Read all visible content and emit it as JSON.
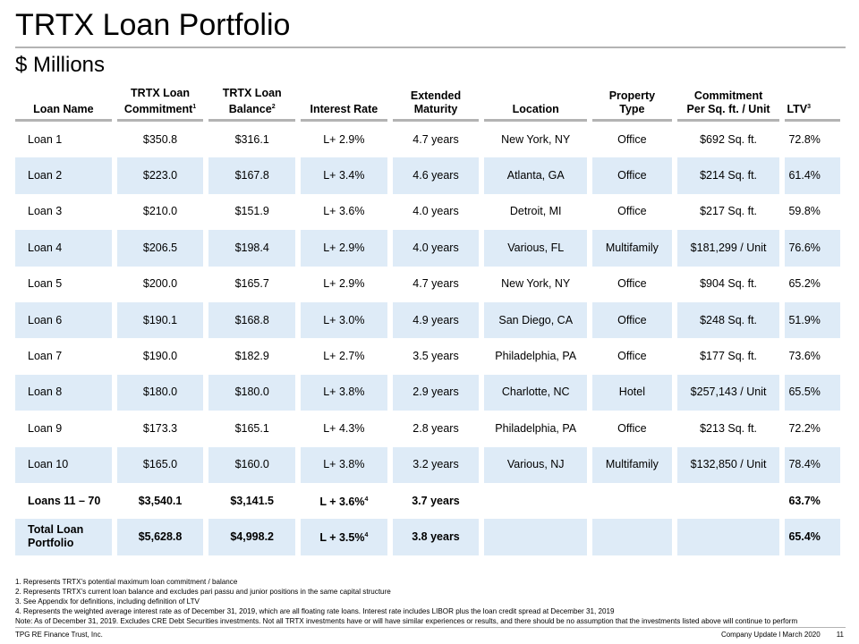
{
  "title": "TRTX Loan Portfolio",
  "subtitle": "$ Millions",
  "table": {
    "headers": [
      {
        "line1": "",
        "line2": "Loan Name",
        "sup": ""
      },
      {
        "line1": "TRTX Loan",
        "line2": "Commitment",
        "sup": "1"
      },
      {
        "line1": "TRTX Loan",
        "line2": "Balance",
        "sup": "2"
      },
      {
        "line1": "",
        "line2": "Interest Rate",
        "sup": ""
      },
      {
        "line1": "Extended",
        "line2": "Maturity",
        "sup": ""
      },
      {
        "line1": "",
        "line2": "Location",
        "sup": ""
      },
      {
        "line1": "Property",
        "line2": "Type",
        "sup": ""
      },
      {
        "line1": "Commitment",
        "line2": "Per Sq. ft. / Unit",
        "sup": ""
      },
      {
        "line1": "",
        "line2": "LTV",
        "sup": "3"
      }
    ],
    "rows": [
      {
        "name": "Loan 1",
        "commitment": "$350.8",
        "balance": "$316.1",
        "rate": "L+ 2.9%",
        "rate_sup": "",
        "maturity": "4.7 years",
        "location": "New York, NY",
        "type": "Office",
        "per_unit": "$692 Sq. ft.",
        "ltv": "72.8%"
      },
      {
        "name": "Loan 2",
        "commitment": "$223.0",
        "balance": "$167.8",
        "rate": "L+ 3.4%",
        "rate_sup": "",
        "maturity": "4.6 years",
        "location": "Atlanta, GA",
        "type": "Office",
        "per_unit": "$214 Sq. ft.",
        "ltv": "61.4%"
      },
      {
        "name": "Loan 3",
        "commitment": "$210.0",
        "balance": "$151.9",
        "rate": "L+ 3.6%",
        "rate_sup": "",
        "maturity": "4.0 years",
        "location": "Detroit, MI",
        "type": "Office",
        "per_unit": "$217 Sq. ft.",
        "ltv": "59.8%"
      },
      {
        "name": "Loan 4",
        "commitment": "$206.5",
        "balance": "$198.4",
        "rate": "L+ 2.9%",
        "rate_sup": "",
        "maturity": "4.0 years",
        "location": "Various, FL",
        "type": "Multifamily",
        "per_unit": "$181,299 / Unit",
        "ltv": "76.6%"
      },
      {
        "name": "Loan 5",
        "commitment": "$200.0",
        "balance": "$165.7",
        "rate": "L+ 2.9%",
        "rate_sup": "",
        "maturity": "4.7 years",
        "location": "New York, NY",
        "type": "Office",
        "per_unit": "$904 Sq. ft.",
        "ltv": "65.2%"
      },
      {
        "name": "Loan 6",
        "commitment": "$190.1",
        "balance": "$168.8",
        "rate": "L+ 3.0%",
        "rate_sup": "",
        "maturity": "4.9 years",
        "location": "San Diego, CA",
        "type": "Office",
        "per_unit": "$248 Sq. ft.",
        "ltv": "51.9%"
      },
      {
        "name": "Loan 7",
        "commitment": "$190.0",
        "balance": "$182.9",
        "rate": "L+ 2.7%",
        "rate_sup": "",
        "maturity": "3.5 years",
        "location": "Philadelphia, PA",
        "type": "Office",
        "per_unit": "$177 Sq. ft.",
        "ltv": "73.6%"
      },
      {
        "name": "Loan 8",
        "commitment": "$180.0",
        "balance": "$180.0",
        "rate": "L+ 3.8%",
        "rate_sup": "",
        "maturity": "2.9 years",
        "location": "Charlotte, NC",
        "type": "Hotel",
        "per_unit": "$257,143 / Unit",
        "ltv": "65.5%"
      },
      {
        "name": "Loan 9",
        "commitment": "$173.3",
        "balance": "$165.1",
        "rate": "L+ 4.3%",
        "rate_sup": "",
        "maturity": "2.8 years",
        "location": "Philadelphia, PA",
        "type": "Office",
        "per_unit": "$213 Sq. ft.",
        "ltv": "72.2%"
      },
      {
        "name": "Loan 10",
        "commitment": "$165.0",
        "balance": "$160.0",
        "rate": "L+ 3.8%",
        "rate_sup": "",
        "maturity": "3.2 years",
        "location": "Various, NJ",
        "type": "Multifamily",
        "per_unit": "$132,850 / Unit",
        "ltv": "78.4%"
      },
      {
        "name": "Loans 11 – 70",
        "commitment": "$3,540.1",
        "balance": "$3,141.5",
        "rate": "L + 3.6%",
        "rate_sup": "4",
        "maturity": "3.7 years",
        "location": "",
        "type": "",
        "per_unit": "",
        "ltv": "63.7%",
        "bold": true
      },
      {
        "name": "Total Loan Portfolio",
        "commitment": "$5,628.8",
        "balance": "$4,998.2",
        "rate": "L + 3.5%",
        "rate_sup": "4",
        "maturity": "3.8 years",
        "location": "",
        "type": "",
        "per_unit": "",
        "ltv": "65.4%",
        "bold": true
      }
    ]
  },
  "footnotes": [
    "1. Represents TRTX’s potential maximum loan commitment / balance",
    "2. Represents TRTX’s current loan balance and excludes pari passu and junior positions in the same capital structure",
    "3. See Appendix for definitions, including definition of LTV",
    "4. Represents the weighted average interest rate as of December 31, 2019, which are all floating rate loans. Interest rate includes LIBOR plus the loan credit spread at December 31, 2019",
    "Note: As of December 31, 2019. Excludes CRE Debt Securities investments. Not all TRTX investments have or will have similar experiences or results, and there should be no assumption that the investments listed above will continue to perform"
  ],
  "footer": {
    "company": "TPG RE Finance Trust, Inc.",
    "update": "Company Update l March 2020",
    "page_number": "11"
  }
}
